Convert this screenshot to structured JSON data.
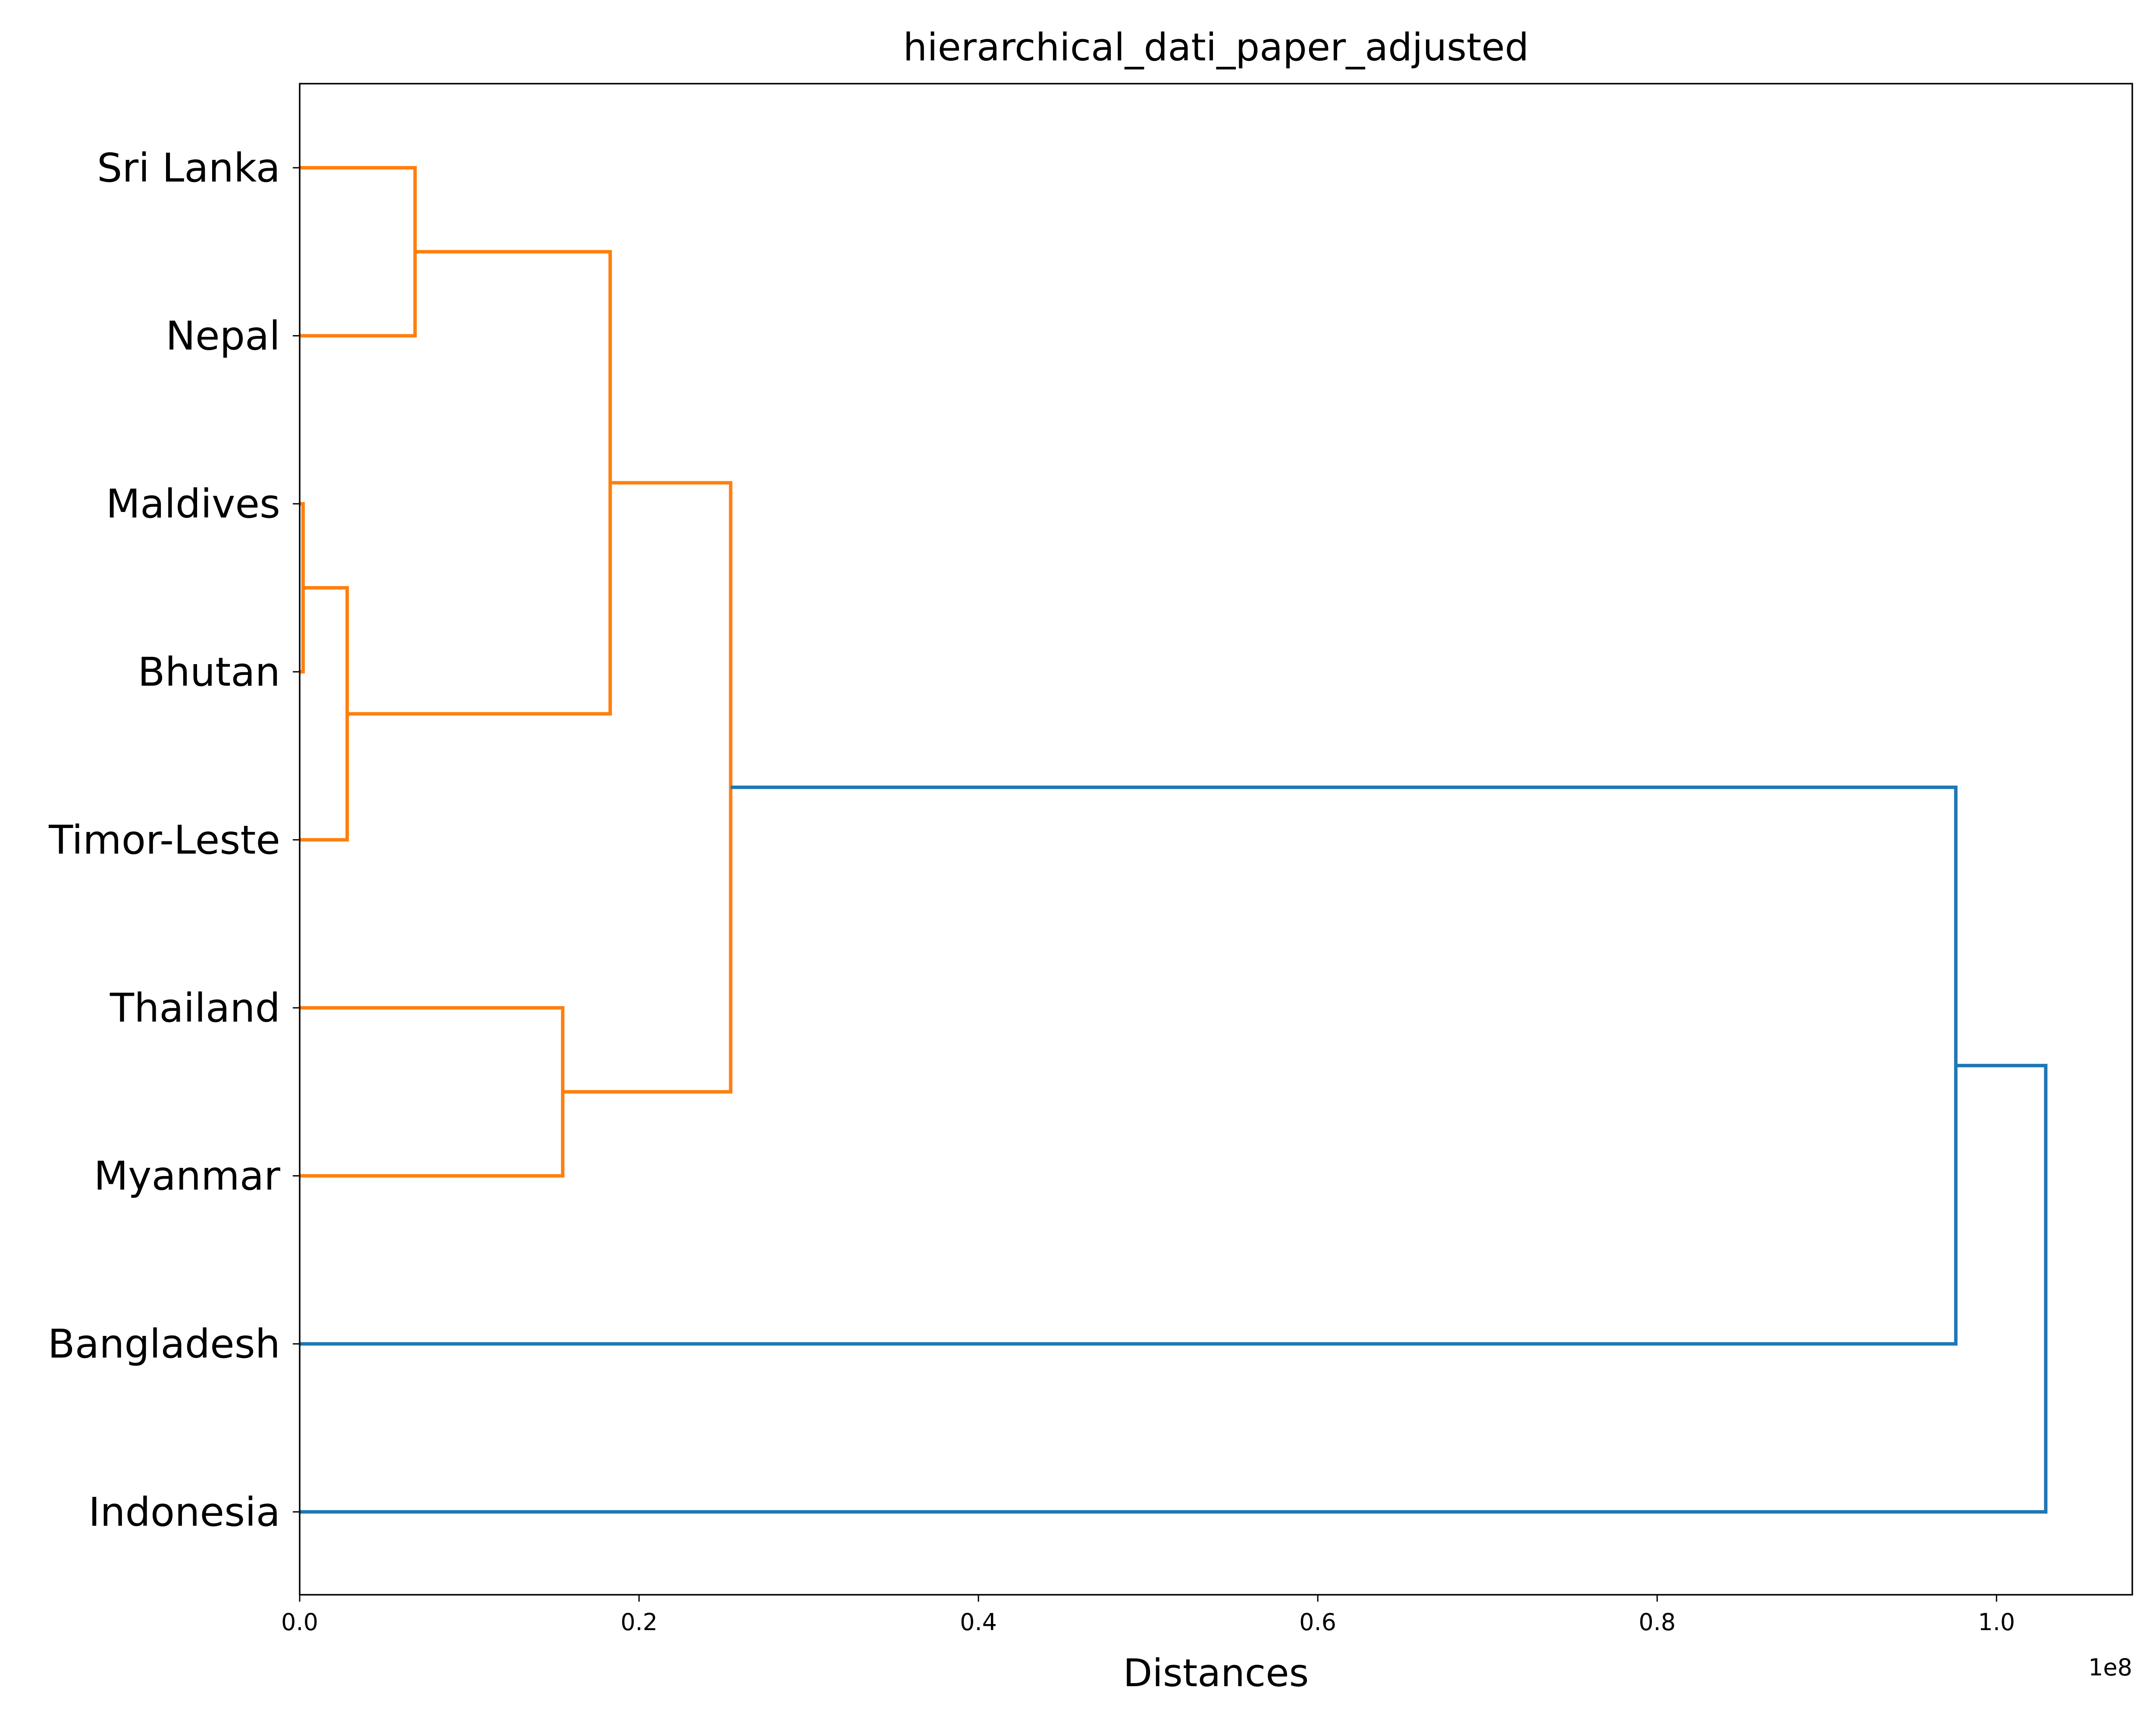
{
  "chart_data": {
    "type": "dendrogram",
    "orientation": "horizontal",
    "title": "hierarchical_dati_paper_adjusted",
    "xlabel": "Distances",
    "ylabel": "",
    "x_offset_label": "1e8",
    "xlim": [
      0,
      1.08
    ],
    "x_ticks": [
      0.0,
      0.2,
      0.4,
      0.6,
      0.8,
      1.0
    ],
    "x_tick_labels": [
      "0.0",
      "0.2",
      "0.4",
      "0.6",
      "0.8",
      "1.0"
    ],
    "leaves": [
      "Sri Lanka",
      "Nepal",
      "Maldives",
      "Bhutan",
      "Timor-Leste",
      "Thailand",
      "Myanmar",
      "Bangladesh",
      "Indonesia"
    ],
    "merges": [
      {
        "left": "Maldives",
        "right": "Bhutan",
        "distance": 0.002,
        "color": "#ff7f0e"
      },
      {
        "left": "Sri Lanka",
        "right": "Nepal",
        "distance": 0.068,
        "color": "#ff7f0e"
      },
      {
        "left": "Maldives + Bhutan",
        "right": "Timor-Leste",
        "distance": 0.028,
        "color": "#ff7f0e"
      },
      {
        "left": "Thailand",
        "right": "Myanmar",
        "distance": 0.155,
        "color": "#ff7f0e"
      },
      {
        "left": "Sri Lanka + Nepal",
        "right": "Maldives + Bhutan + Timor-Leste",
        "distance": 0.183,
        "color": "#ff7f0e"
      },
      {
        "left": "Sri Lanka + Nepal + Maldives + Bhutan + Timor-Leste",
        "right": "Thailand + Myanmar",
        "distance": 0.254,
        "color": "#ff7f0e"
      },
      {
        "left": "Sri Lanka + Nepal + Maldives + Bhutan + Timor-Leste + Thailand + Myanmar",
        "right": "Bangladesh",
        "distance": 0.976,
        "color": "#1f77b4"
      },
      {
        "left": "Sri Lanka + Nepal + Maldives + Bhutan + Timor-Leste + Thailand + Myanmar + Bangladesh",
        "right": "Indonesia",
        "distance": 1.029,
        "color": "#1f77b4"
      }
    ],
    "colors": {
      "cluster": "#ff7f0e",
      "above_threshold": "#1f77b4"
    },
    "grid": false,
    "legend": "none"
  }
}
